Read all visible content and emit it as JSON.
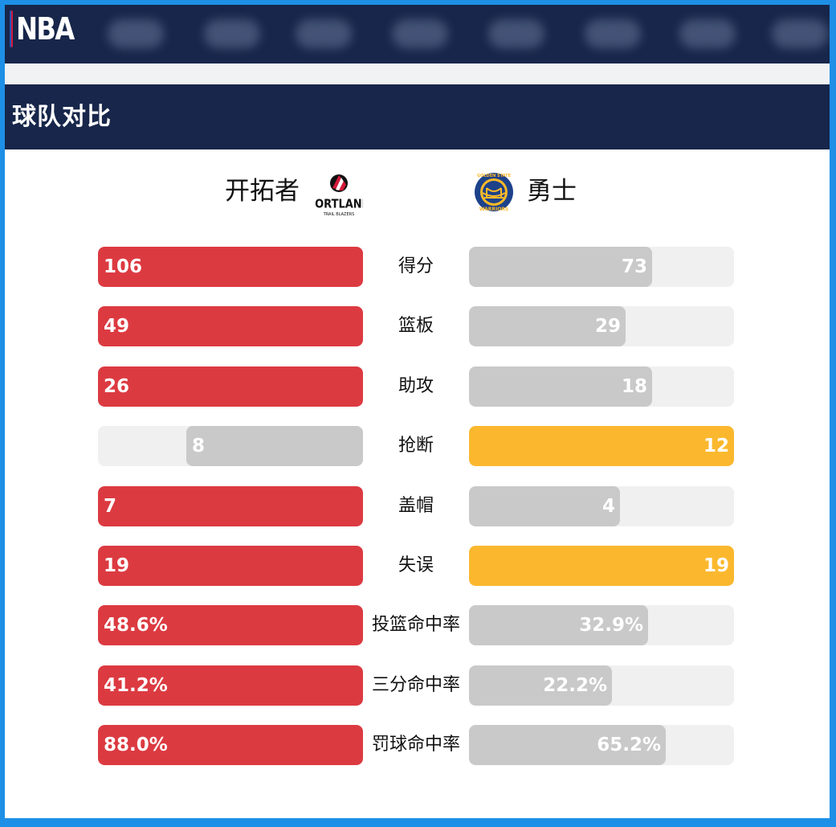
{
  "header": {
    "logo_text": "NBA",
    "logo_colors": {
      "blue": "#1d57b8",
      "red": "#d4193a"
    },
    "nav_background": "#17264a",
    "nav_items_blurred": true
  },
  "section": {
    "title": "球队对比"
  },
  "teams": {
    "left": {
      "name": "开拓者",
      "logo_icon": "portland-trail-blazers-logo",
      "logo_text": "PORTLAND",
      "logo_subtext": "TRAIL BLAZERS"
    },
    "right": {
      "name": "勇士",
      "logo_icon": "golden-state-warriors-logo",
      "logo_text": "GOLDEN STATE",
      "logo_subtext": "WARRIORS"
    }
  },
  "colors": {
    "leader_left": "#dc3a41",
    "leader_right": "#fbb82e",
    "trailing": "#c9c9c9",
    "track": "#f0f0f0"
  },
  "stats": [
    {
      "label": "得分",
      "left": "106",
      "right": "73",
      "left_frac": 1.0,
      "right_frac": 0.69,
      "leader": "left"
    },
    {
      "label": "篮板",
      "left": "49",
      "right": "29",
      "left_frac": 1.0,
      "right_frac": 0.592,
      "leader": "left"
    },
    {
      "label": "助攻",
      "left": "26",
      "right": "18",
      "left_frac": 1.0,
      "right_frac": 0.692,
      "leader": "left"
    },
    {
      "label": "抢断",
      "left": "8",
      "right": "12",
      "left_frac": 0.667,
      "right_frac": 1.0,
      "leader": "right"
    },
    {
      "label": "盖帽",
      "left": "7",
      "right": "4",
      "left_frac": 1.0,
      "right_frac": 0.571,
      "leader": "left"
    },
    {
      "label": "失误",
      "left": "19",
      "right": "19",
      "left_frac": 1.0,
      "right_frac": 1.0,
      "leader": "both"
    },
    {
      "label": "投篮命中率",
      "left": "48.6%",
      "right": "32.9%",
      "left_frac": 1.0,
      "right_frac": 0.677,
      "leader": "left"
    },
    {
      "label": "三分命中率",
      "left": "41.2%",
      "right": "22.2%",
      "left_frac": 1.0,
      "right_frac": 0.539,
      "leader": "left"
    },
    {
      "label": "罚球命中率",
      "left": "88.0%",
      "right": "65.2%",
      "left_frac": 1.0,
      "right_frac": 0.741,
      "leader": "left"
    }
  ]
}
